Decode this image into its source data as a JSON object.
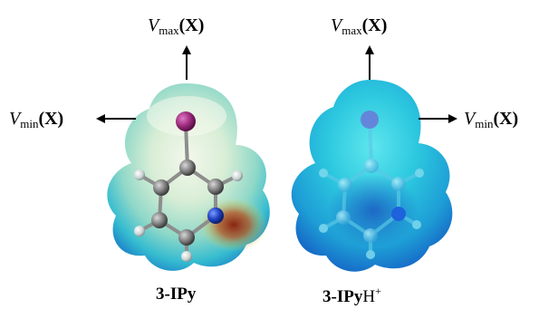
{
  "left": {
    "vmax": {
      "v": "V",
      "sub": "max",
      "x": "(X)"
    },
    "vmin": {
      "v": "V",
      "sub": "min",
      "x": "(X)"
    },
    "caption": "3-IPy"
  },
  "right": {
    "vmax": {
      "v": "V",
      "sub": "max",
      "x": "(X)"
    },
    "vmin": {
      "v": "V",
      "sub": "min",
      "x": "(X)"
    },
    "caption_main": "3-IPy",
    "caption_h": "H",
    "caption_sup": "+"
  },
  "colors": {
    "iodine": "#9a2a7a",
    "carbon": "#7a7a7a",
    "nitrogen": "#1e3fbf",
    "hydrogen": "#d8dcdc",
    "surface_neutral_core": "#cfe9d8",
    "surface_neutral_edge": "#21b7cf",
    "surface_cation_core": "#2fd0e0",
    "surface_cation_edge": "#1e6fd0",
    "arrow": "#000000"
  }
}
